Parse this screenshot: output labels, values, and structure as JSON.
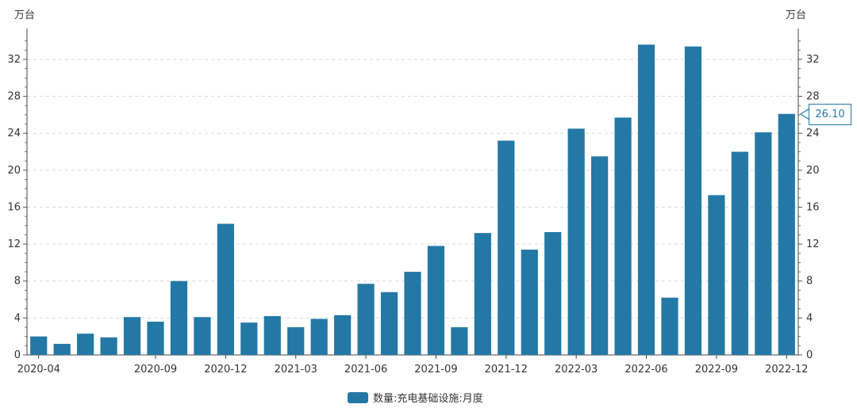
{
  "chart_data": {
    "type": "bar",
    "unit_left": "万台",
    "unit_right": "万台",
    "categories": [
      "2020-04",
      "2020-05",
      "2020-06",
      "2020-07",
      "2020-08",
      "2020-09",
      "2020-10",
      "2020-11",
      "2020-12",
      "2021-01",
      "2021-02",
      "2021-03",
      "2021-04",
      "2021-05",
      "2021-06",
      "2021-07",
      "2021-08",
      "2021-09",
      "2021-10",
      "2021-11",
      "2021-12",
      "2022-01",
      "2022-02",
      "2022-03",
      "2022-04",
      "2022-05",
      "2022-06",
      "2022-07",
      "2022-08",
      "2022-09",
      "2022-10",
      "2022-11",
      "2022-12"
    ],
    "x_tick_labels": [
      "2020-04",
      "2020-09",
      "2020-12",
      "2021-03",
      "2021-06",
      "2021-09",
      "2021-12",
      "2022-03",
      "2022-06",
      "2022-09",
      "2022-12"
    ],
    "series": [
      {
        "name": "数量:充电基础设施:月度",
        "color": "#2478a6",
        "values": [
          2.0,
          1.2,
          2.3,
          1.9,
          4.1,
          3.6,
          8.0,
          4.1,
          14.2,
          3.5,
          4.2,
          3.0,
          3.9,
          4.3,
          7.7,
          6.8,
          9.0,
          11.8,
          3.0,
          13.2,
          23.2,
          11.4,
          13.3,
          24.5,
          21.5,
          25.7,
          33.6,
          6.2,
          33.4,
          17.3,
          22.0,
          24.1,
          26.1
        ]
      }
    ],
    "ylim": [
      0,
      35
    ],
    "y_ticks": [
      0,
      4,
      8,
      12,
      16,
      20,
      24,
      28,
      32
    ],
    "grid": "horizontal-dashed",
    "legend_position": "bottom-center",
    "tooltip": {
      "category": "2022-12",
      "text": "26.10"
    }
  }
}
